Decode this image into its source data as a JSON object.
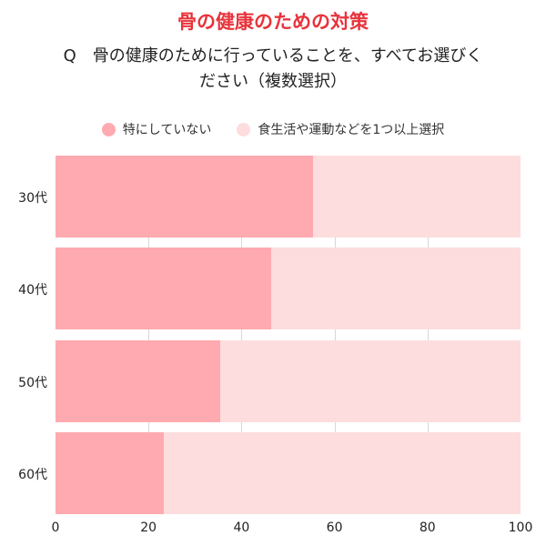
{
  "title": "骨の健康のための対策",
  "question_line1": "Q　骨の健康のために行っていることを、すべてお選びく",
  "question_line2": "ださい（複数選択）",
  "legend": [
    {
      "label": "特にしていない",
      "color": "#ffaab0"
    },
    {
      "label": "食生活や運動などを1つ以上選択",
      "color": "#fdddde"
    }
  ],
  "chart_data": {
    "type": "bar",
    "orientation": "horizontal",
    "stacked": true,
    "title": "骨の健康のための対策",
    "subtitle": "Q　骨の健康のために行っていることを、すべてお選びください（複数選択）",
    "categories": [
      "30代",
      "40代",
      "50代",
      "60代"
    ],
    "series": [
      {
        "name": "特にしていない",
        "values": [
          55.4,
          46.4,
          35.4,
          23.3
        ]
      },
      {
        "name": "食生活や運動などを1つ以上選択",
        "values": [
          44.6,
          53.6,
          64.6,
          76.7
        ]
      }
    ],
    "xlabel": "",
    "ylabel": "",
    "xlim": [
      0,
      100
    ],
    "xticks": [
      "0",
      "20",
      "40",
      "60",
      "80",
      "100"
    ],
    "grid": true,
    "legend_position": "top"
  }
}
